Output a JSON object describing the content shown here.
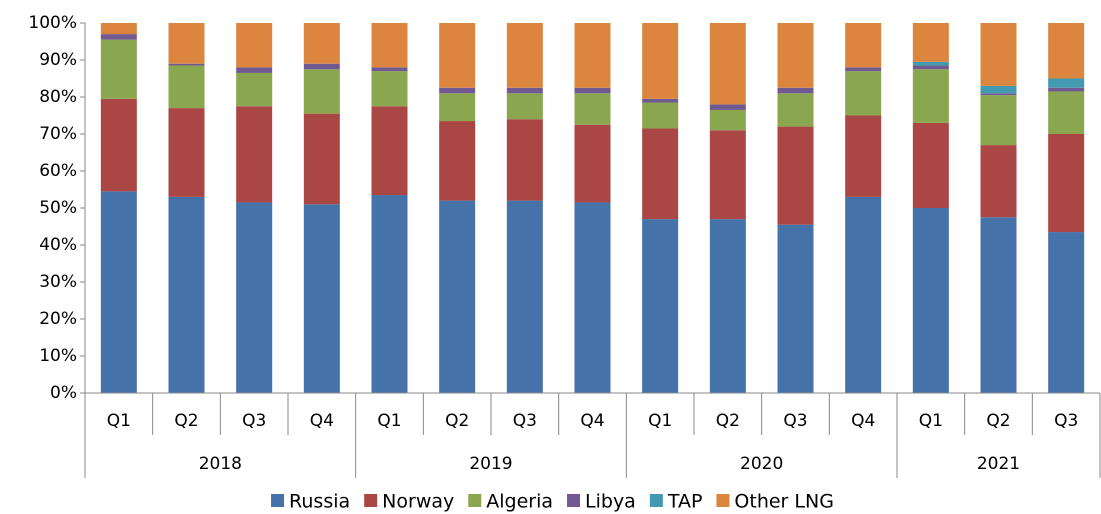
{
  "chart_data": {
    "type": "stacked_bar",
    "groups": [
      {
        "name": "2018",
        "categories": [
          "Q1",
          "Q2",
          "Q3",
          "Q4"
        ]
      },
      {
        "name": "2019",
        "categories": [
          "Q1",
          "Q2",
          "Q3",
          "Q4"
        ]
      },
      {
        "name": "2020",
        "categories": [
          "Q1",
          "Q2",
          "Q3",
          "Q4"
        ]
      },
      {
        "name": "2021",
        "categories": [
          "Q1",
          "Q2",
          "Q3"
        ]
      }
    ],
    "series": [
      {
        "name": "Russia",
        "color": "#4672aa",
        "values": [
          54.5,
          53,
          51.5,
          51,
          53.5,
          52,
          52,
          51.5,
          47,
          47,
          45.5,
          53,
          50,
          47.5,
          43.5
        ]
      },
      {
        "name": "Norway",
        "color": "#aa4644",
        "values": [
          25,
          24,
          26,
          24.5,
          24,
          21.5,
          22,
          21,
          24.5,
          24,
          26.5,
          22,
          23,
          19.5,
          26.5
        ]
      },
      {
        "name": "Algeria",
        "color": "#8aa64f",
        "values": [
          16,
          11.5,
          9,
          12,
          9.5,
          7.5,
          7,
          8.5,
          7,
          5.5,
          9,
          12,
          14.5,
          13.5,
          11.5
        ]
      },
      {
        "name": "Libya",
        "color": "#715a91",
        "values": [
          1.5,
          0.5,
          1.5,
          1.5,
          1,
          1.5,
          1.5,
          1.5,
          1,
          1.5,
          1.5,
          1,
          1,
          0.5,
          1
        ]
      },
      {
        "name": "TAP",
        "color": "#4399b0",
        "values": [
          0,
          0,
          0,
          0,
          0,
          0,
          0,
          0,
          0,
          0,
          0,
          0,
          1,
          2,
          2.5
        ]
      },
      {
        "name": "Other LNG",
        "color": "#db853f",
        "values": [
          3,
          11,
          12,
          11,
          12,
          17.5,
          17.5,
          17.5,
          20.5,
          22,
          17.5,
          12,
          10.5,
          17,
          15
        ]
      }
    ],
    "ylim": [
      0,
      100
    ],
    "yticks": [
      {
        "value": 0,
        "label": "0%"
      },
      {
        "value": 10,
        "label": "10%"
      },
      {
        "value": 20,
        "label": "20%"
      },
      {
        "value": 30,
        "label": "30%"
      },
      {
        "value": 40,
        "label": "40%"
      },
      {
        "value": 50,
        "label": "50%"
      },
      {
        "value": 60,
        "label": "60%"
      },
      {
        "value": 70,
        "label": "70%"
      },
      {
        "value": 80,
        "label": "80%"
      },
      {
        "value": 90,
        "label": "90%"
      },
      {
        "value": 100,
        "label": "100%"
      }
    ],
    "legend": "bottom"
  }
}
